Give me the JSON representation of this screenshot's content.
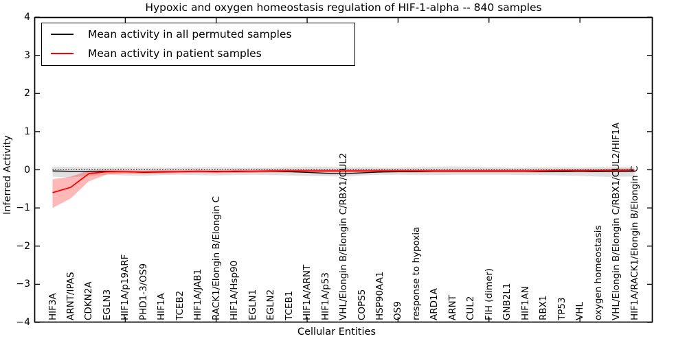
{
  "chart_data": {
    "type": "line",
    "title": "Hypoxic and oxygen homeostasis regulation of HIF-1-alpha -- 840 samples",
    "xlabel": "Cellular Entities",
    "ylabel": "Inferred Activity",
    "ylim": [
      -4,
      4
    ],
    "yticks": [
      4,
      3,
      2,
      1,
      0,
      -1,
      -2,
      -3,
      -4
    ],
    "x_major_tick_interval": 5,
    "grid": false,
    "legend_position": "upper left",
    "zero_reference_line": 0,
    "categories": [
      "HIF3A",
      "ARNT/IPAS",
      "CDKN2A",
      "EGLN3",
      "HIF1A/p19ARF",
      "PHD1-3/OS9",
      "HIF1A",
      "TCEB2",
      "HIF1A/JAB1",
      "RACK1/Elongin B/Elongin C",
      "HIF1A/Hsp90",
      "EGLN1",
      "EGLN2",
      "TCEB1",
      "HIF1A/ARNT",
      "HIF1A/p53",
      "VHL/Elongin B/Elongin C/RBX1/CUL2",
      "COPS5",
      "HSP90AA1",
      "OS9",
      "response to hypoxia",
      "ARD1A",
      "ARNT",
      "CUL2",
      "FIH (dimer)",
      "GNB2L1",
      "HIF1AN",
      "RBX1",
      "TP53",
      "VHL",
      "oxygen homeostasis",
      "VHL/Elongin B/Elongin C/RBX1/CUL2/HIF1A",
      "HIF1A/RACK1/Elongin B/Elongin C"
    ],
    "series": [
      {
        "name": "Mean activity in all permuted samples",
        "color": "#000000",
        "band_color": "rgba(0,0,0,0.12)",
        "values": [
          -0.03,
          -0.04,
          -0.04,
          -0.04,
          -0.05,
          -0.07,
          -0.06,
          -0.05,
          -0.04,
          -0.04,
          -0.05,
          -0.04,
          -0.04,
          -0.05,
          -0.07,
          -0.09,
          -0.1,
          -0.08,
          -0.06,
          -0.05,
          -0.05,
          -0.04,
          -0.04,
          -0.04,
          -0.04,
          -0.04,
          -0.04,
          -0.05,
          -0.05,
          -0.04,
          -0.05,
          -0.05,
          -0.04
        ],
        "band_upper": [
          0.08,
          0.08,
          0.07,
          0.06,
          0.07,
          0.06,
          0.06,
          0.06,
          0.07,
          0.07,
          0.06,
          0.06,
          0.06,
          0.07,
          0.08,
          0.08,
          0.07,
          0.07,
          0.06,
          0.06,
          0.07,
          0.08,
          0.09,
          0.08,
          0.07,
          0.06,
          0.06,
          0.07,
          0.07,
          0.06,
          0.07,
          0.08,
          0.07
        ],
        "band_lower": [
          -0.18,
          -0.2,
          -0.16,
          -0.13,
          -0.15,
          -0.16,
          -0.14,
          -0.13,
          -0.14,
          -0.15,
          -0.14,
          -0.13,
          -0.14,
          -0.15,
          -0.16,
          -0.17,
          -0.18,
          -0.15,
          -0.13,
          -0.13,
          -0.14,
          -0.14,
          -0.13,
          -0.13,
          -0.13,
          -0.13,
          -0.14,
          -0.14,
          -0.15,
          -0.16,
          -0.18,
          -0.19,
          -0.17
        ]
      },
      {
        "name": "Mean activity in patient samples",
        "color": "#ff0000",
        "band_color": "rgba(255,0,0,0.28)",
        "values": [
          -0.6,
          -0.46,
          -0.1,
          -0.05,
          -0.05,
          -0.06,
          -0.05,
          -0.05,
          -0.04,
          -0.05,
          -0.04,
          -0.04,
          -0.03,
          -0.03,
          -0.03,
          -0.03,
          -0.03,
          -0.03,
          -0.03,
          -0.03,
          -0.03,
          -0.03,
          -0.03,
          -0.03,
          -0.03,
          -0.03,
          -0.03,
          -0.03,
          -0.02,
          -0.02,
          -0.02,
          -0.01,
          -0.01
        ],
        "band_upper": [
          -0.25,
          -0.18,
          -0.02,
          0.0,
          -0.01,
          -0.02,
          -0.01,
          -0.01,
          0.0,
          -0.01,
          0.0,
          0.0,
          0.01,
          0.01,
          0.01,
          0.01,
          0.01,
          0.01,
          0.01,
          0.01,
          0.01,
          0.01,
          0.01,
          0.01,
          0.01,
          0.01,
          0.01,
          0.01,
          0.02,
          0.02,
          0.02,
          0.03,
          0.03
        ],
        "band_lower": [
          -1.0,
          -0.75,
          -0.3,
          -0.12,
          -0.1,
          -0.11,
          -0.1,
          -0.09,
          -0.08,
          -0.09,
          -0.08,
          -0.08,
          -0.07,
          -0.07,
          -0.07,
          -0.07,
          -0.07,
          -0.07,
          -0.07,
          -0.07,
          -0.07,
          -0.07,
          -0.07,
          -0.07,
          -0.07,
          -0.07,
          -0.07,
          -0.07,
          -0.06,
          -0.06,
          -0.06,
          -0.05,
          -0.05
        ]
      }
    ]
  }
}
